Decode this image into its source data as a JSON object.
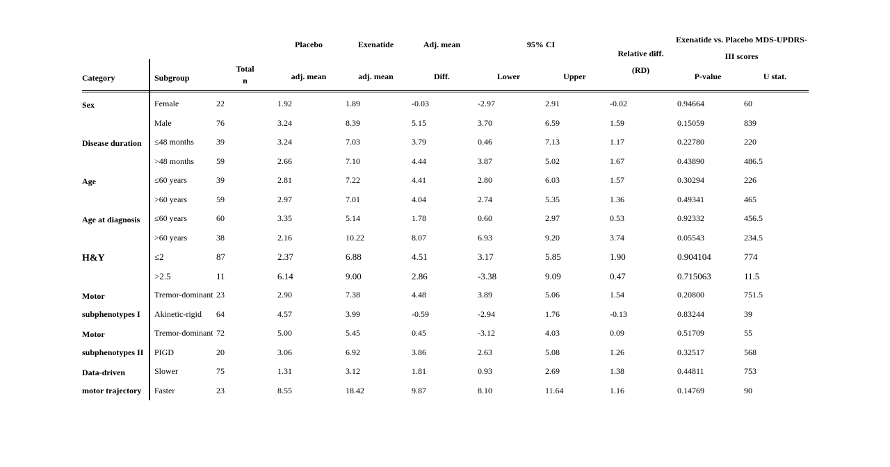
{
  "table": {
    "header": {
      "category": "Category",
      "subgroup": "Subgroup",
      "total_line1": "Total",
      "total_line2": "n",
      "placebo": "Placebo",
      "exenatide": "Exenatide",
      "adj_mean": "Adj. mean",
      "adj_mean_sub": "adj. mean",
      "diff": "Diff.",
      "ci": "95% CI",
      "lower": "Lower",
      "upper": "Upper",
      "rd_line1": "Relative diff.",
      "rd_line2": "(RD)",
      "scores_line1": "Exenatide vs. Placebo MDS-UPDRS-",
      "scores_line2": "III scores",
      "pvalue": "P-value",
      "ustat": "U stat."
    },
    "groups": [
      {
        "category": "Sex",
        "rows": [
          [
            "Female",
            "22",
            "1.92",
            "1.89",
            "-0.03",
            "-2.97",
            "2.91",
            "-0.02",
            "0.94664",
            "60"
          ],
          [
            "Male",
            "76",
            "3.24",
            "8.39",
            "5.15",
            "3.70",
            "6.59",
            "1.59",
            "0.15059",
            "839"
          ]
        ]
      },
      {
        "category": "Disease duration",
        "rows": [
          [
            "≤48 months",
            "39",
            "3.24",
            "7.03",
            "3.79",
            "0.46",
            "7.13",
            "1.17",
            "0.22780",
            "220"
          ],
          [
            ">48 months",
            "59",
            "2.66",
            "7.10",
            "4.44",
            "3.87",
            "5.02",
            "1.67",
            "0.43890",
            "486.5"
          ]
        ]
      },
      {
        "category": "Age",
        "rows": [
          [
            "≤60 years",
            "39",
            "2.81",
            "7.22",
            "4.41",
            "2.80",
            "6.03",
            "1.57",
            "0.30294",
            "226"
          ],
          [
            ">60 years",
            "59",
            "2.97",
            "7.01",
            "4.04",
            "2.74",
            "5.35",
            "1.36",
            "0.49341",
            "465"
          ]
        ]
      },
      {
        "category": "Age at diagnosis",
        "rows": [
          [
            "≤60 years",
            "60",
            "3.35",
            "5.14",
            "1.78",
            "0.60",
            "2.97",
            "0.53",
            "0.92332",
            "456.5"
          ],
          [
            ">60 years",
            "38",
            "2.16",
            "10.22",
            "8.07",
            "6.93",
            "9.20",
            "3.74",
            "0.05543",
            "234.5"
          ]
        ]
      },
      {
        "category": "H&Y",
        "large": true,
        "rows": [
          [
            "≤2",
            "87",
            "2.37",
            "6.88",
            "4.51",
            "3.17",
            "5.85",
            "1.90",
            "0.904104",
            "774"
          ],
          [
            ">2.5",
            "11",
            "6.14",
            "9.00",
            "2.86",
            "-3.38",
            "9.09",
            "0.47",
            "0.715063",
            "11.5"
          ]
        ]
      },
      {
        "category": "Motor subphenotypes I",
        "rows": [
          [
            "Tremor-dominant",
            "23",
            "2.90",
            "7.38",
            "4.48",
            "3.89",
            "5.06",
            "1.54",
            "0.20800",
            "751.5"
          ],
          [
            "Akinetic-rigid",
            "64",
            "4.57",
            "3.99",
            "-0.59",
            "-2.94",
            "1.76",
            "-0.13",
            "0.83244",
            "39"
          ]
        ]
      },
      {
        "category": "Motor subphenotypes II",
        "rows": [
          [
            "Tremor-dominant",
            "72",
            "5.00",
            "5.45",
            "0.45",
            "-3.12",
            "4.03",
            "0.09",
            "0.51709",
            "55"
          ],
          [
            "PIGD",
            "20",
            "3.06",
            "6.92",
            "3.86",
            "2.63",
            "5.08",
            "1.26",
            "0.32517",
            "568"
          ]
        ]
      },
      {
        "category": "Data-driven motor trajectory",
        "rows": [
          [
            "Slower",
            "75",
            "1.31",
            "3.12",
            "1.81",
            "0.93",
            "2.69",
            "1.38",
            "0.44811",
            "753"
          ],
          [
            "Faster",
            "23",
            "8.55",
            "18.42",
            "9.87",
            "8.10",
            "11.64",
            "1.16",
            "0.14769",
            "90"
          ]
        ]
      }
    ]
  }
}
